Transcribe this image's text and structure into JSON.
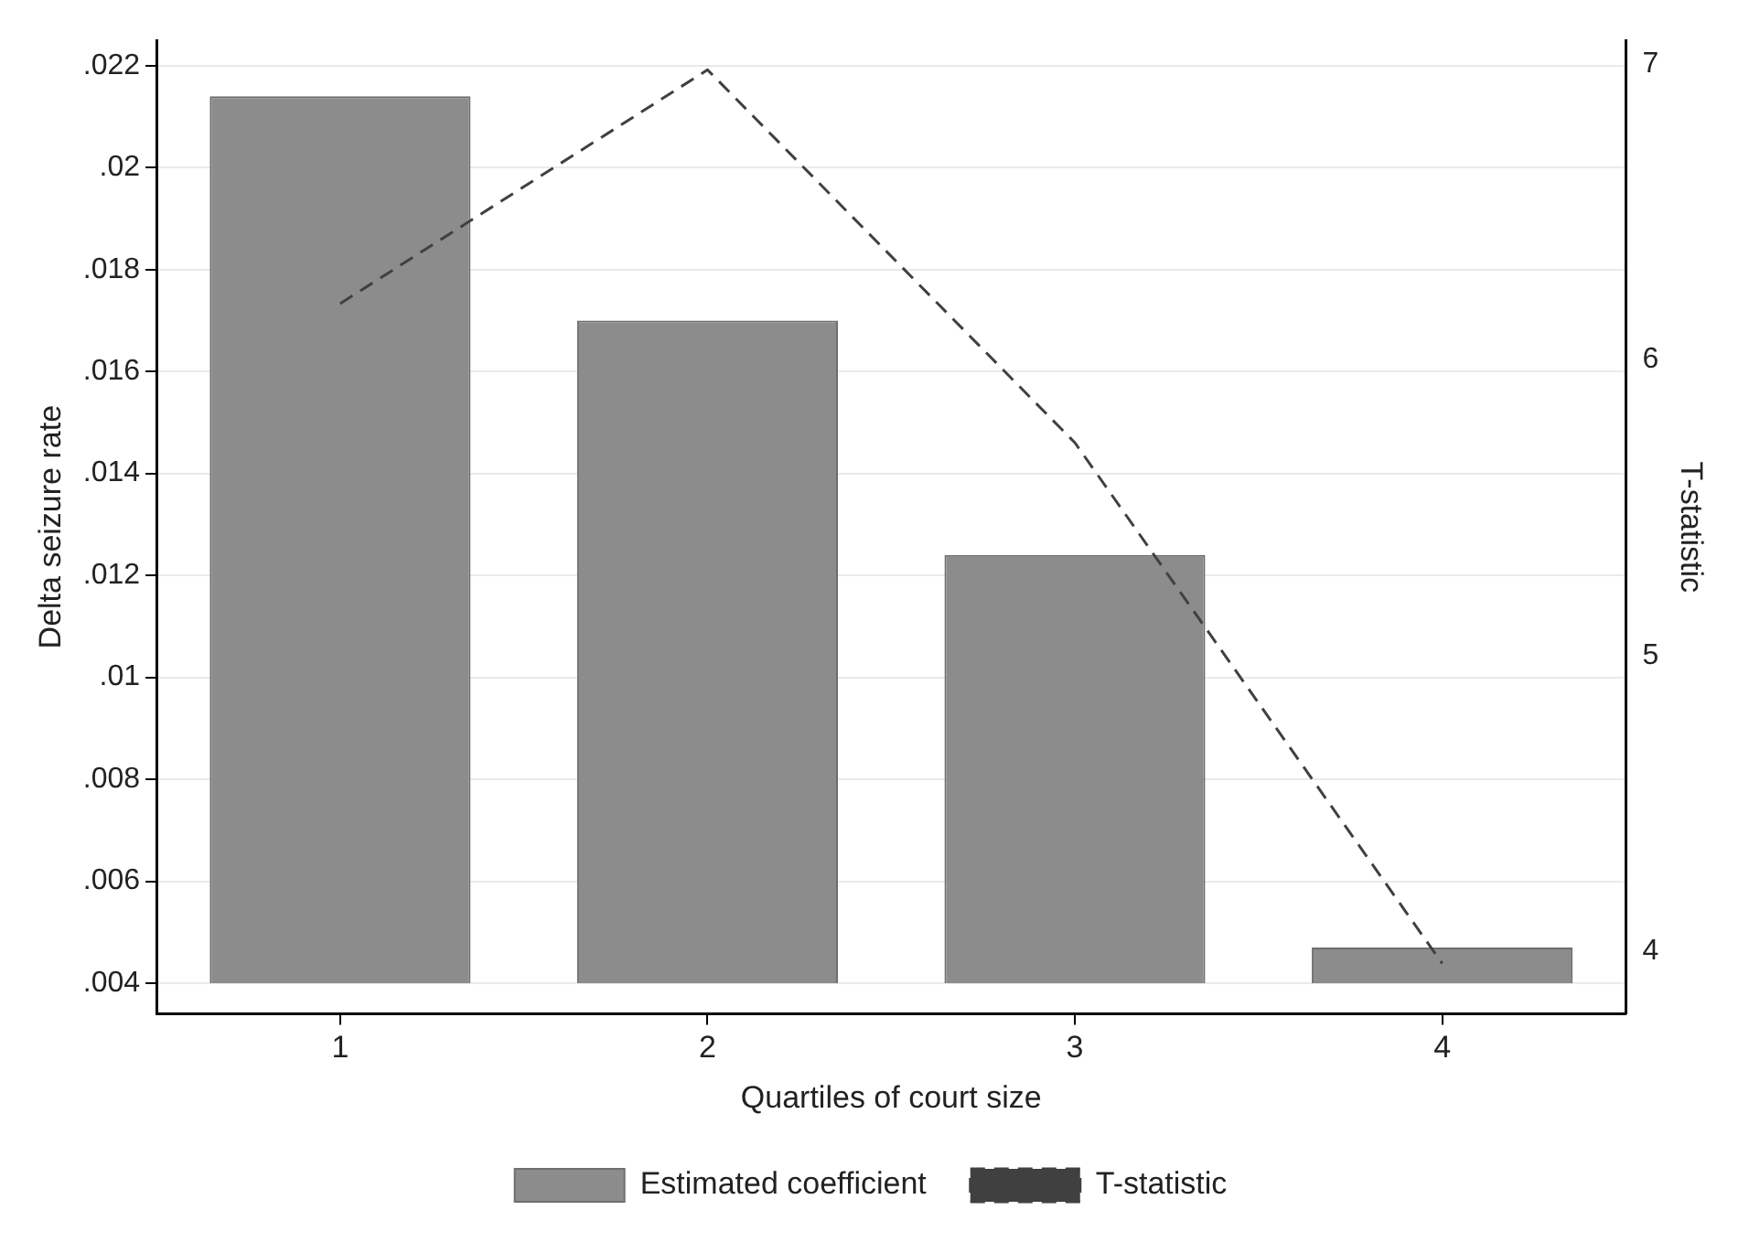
{
  "chart_data": {
    "type": "bar",
    "xlabel": "Quartiles of court size",
    "ylabel": "Delta seizure rate",
    "y2label": "T-statistic",
    "categories": [
      "1",
      "2",
      "3",
      "4"
    ],
    "series": [
      {
        "name": "Estimated coefficient",
        "type": "bar",
        "color": "#8c8c8c",
        "base": [
          0.004,
          0.004,
          0.004,
          0.004
        ],
        "values": [
          0.0174,
          0.013,
          0.0084,
          0.0007
        ]
      },
      {
        "name": "T-statistic",
        "type": "line",
        "axis": "y2",
        "color": "#404040",
        "line_style": "dashed",
        "marker": "none",
        "values": [
          6.19,
          6.98,
          5.72,
          3.96
        ]
      }
    ],
    "ylim": [
      0.0034,
      0.0225
    ],
    "yticks": [
      {
        "value": 0.004,
        "label": ".004"
      },
      {
        "value": 0.006,
        "label": ".006"
      },
      {
        "value": 0.008,
        "label": ".008"
      },
      {
        "value": 0.01,
        "label": ".01"
      },
      {
        "value": 0.012,
        "label": ".012"
      },
      {
        "value": 0.014,
        "label": ".014"
      },
      {
        "value": 0.016,
        "label": ".016"
      },
      {
        "value": 0.018,
        "label": ".018"
      },
      {
        "value": 0.02,
        "label": ".02"
      },
      {
        "value": 0.022,
        "label": ".022"
      }
    ],
    "y2lim": [
      3.79,
      7.08
    ],
    "y2ticks": [
      4,
      5,
      6,
      7
    ],
    "grid": "y",
    "legend": "bottom"
  }
}
